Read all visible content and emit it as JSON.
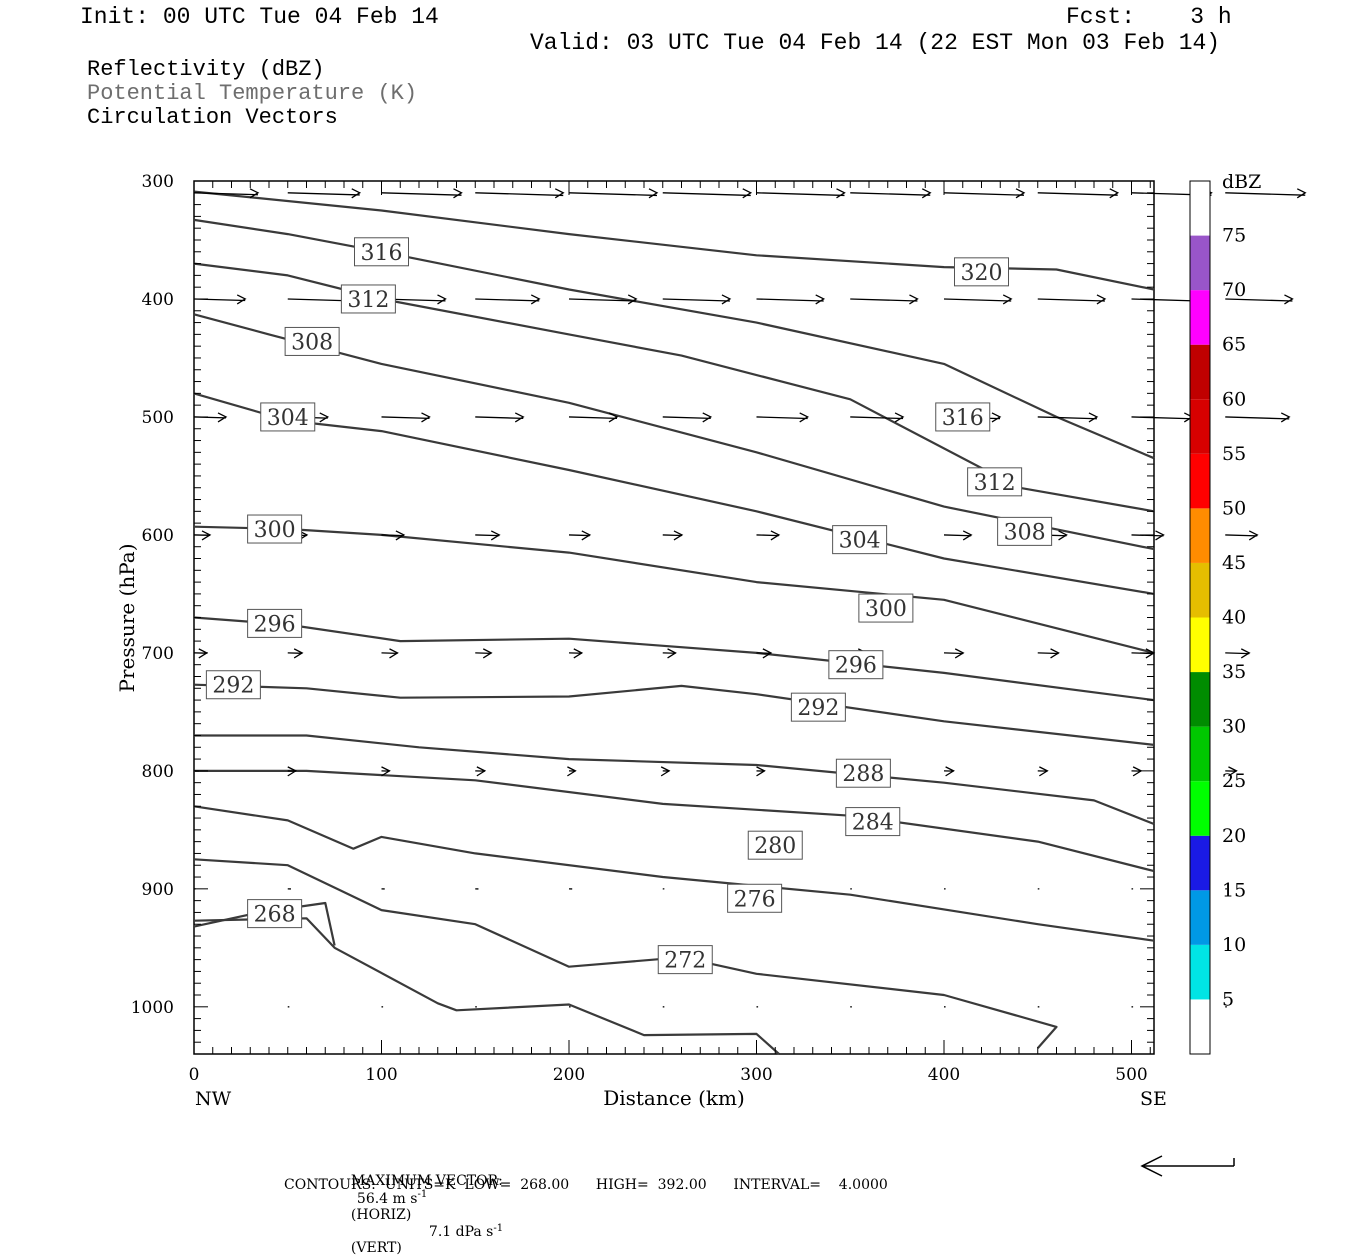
{
  "header": {
    "init": "Init: 00 UTC Tue 04 Feb 14",
    "fcst": "Fcst:    3 h",
    "valid": "Valid: 03 UTC Tue 04 Feb 14 (22 EST Mon 03 Feb 14)"
  },
  "legend_lines": {
    "reflectivity": "Reflectivity (dBZ)",
    "theta": "Potential Temperature (K)",
    "vectors": "Circulation Vectors"
  },
  "footer": {
    "max_vector_label": "MAXIMUM VECTOR:",
    "horiz": "56.4 m s",
    "horiz_tag": "(HORIZ)",
    "vert": "7.1 dPa s",
    "vert_tag": "(VERT)",
    "exponent": "-1",
    "contours": "CONTOURS:  UNITS=K  LOW=  268.00      HIGH=  392.00      INTERVAL=    4.0000"
  },
  "colors": {
    "contour": "#3a3a3a",
    "vector": "#000000"
  },
  "chart_data": {
    "type": "cross-section",
    "xlabel": "Distance (km)",
    "ylabel": "Pressure (hPa)",
    "xlim": [
      0,
      512
    ],
    "ylim": [
      300,
      1040
    ],
    "y_inverted": true,
    "x_ticks": [
      0,
      100,
      200,
      300,
      400,
      500
    ],
    "y_ticks": [
      300,
      400,
      500,
      600,
      700,
      800,
      900,
      1000
    ],
    "x_end_labels": {
      "left": "NW",
      "right": "SE"
    },
    "colorbar": {
      "title": "dBZ",
      "labels": [
        5,
        10,
        15,
        20,
        25,
        30,
        35,
        40,
        45,
        50,
        55,
        60,
        65,
        70,
        75
      ],
      "bins": [
        {
          "from": 0,
          "to": 5,
          "color": "#ffffff"
        },
        {
          "from": 5,
          "to": 10,
          "color": "#00e5e5"
        },
        {
          "from": 10,
          "to": 15,
          "color": "#0099e5"
        },
        {
          "from": 15,
          "to": 20,
          "color": "#1a1ae5"
        },
        {
          "from": 20,
          "to": 25,
          "color": "#00ff00"
        },
        {
          "from": 25,
          "to": 30,
          "color": "#00c800"
        },
        {
          "from": 30,
          "to": 35,
          "color": "#008c00"
        },
        {
          "from": 35,
          "to": 40,
          "color": "#ffff00"
        },
        {
          "from": 40,
          "to": 45,
          "color": "#e5be00"
        },
        {
          "from": 45,
          "to": 50,
          "color": "#ff8c00"
        },
        {
          "from": 50,
          "to": 55,
          "color": "#ff0000"
        },
        {
          "from": 55,
          "to": 60,
          "color": "#d70000"
        },
        {
          "from": 60,
          "to": 65,
          "color": "#c00000"
        },
        {
          "from": 65,
          "to": 70,
          "color": "#ff00ff"
        },
        {
          "from": 70,
          "to": 75,
          "color": "#9955c9"
        },
        {
          "from": 75,
          "to": 80,
          "color": "#ffffff"
        }
      ]
    },
    "theta_contours": [
      {
        "value": 320,
        "points": [
          [
            0,
            309
          ],
          [
            100,
            325
          ],
          [
            200,
            345
          ],
          [
            300,
            363
          ],
          [
            400,
            373
          ],
          [
            460,
            375
          ],
          [
            512,
            392
          ]
        ],
        "label_at": [
          420,
          377
        ]
      },
      {
        "value": 316,
        "points": [
          [
            0,
            333
          ],
          [
            50,
            345
          ],
          [
            100,
            360
          ],
          [
            200,
            392
          ],
          [
            300,
            420
          ],
          [
            400,
            455
          ],
          [
            460,
            500
          ],
          [
            512,
            535
          ]
        ],
        "label_at": [
          [
            100,
            360
          ],
          [
            410,
            500
          ]
        ]
      },
      {
        "value": 312,
        "points": [
          [
            0,
            370
          ],
          [
            50,
            380
          ],
          [
            100,
            400
          ],
          [
            200,
            430
          ],
          [
            260,
            448
          ],
          [
            350,
            485
          ],
          [
            440,
            560
          ],
          [
            512,
            580
          ]
        ],
        "label_at": [
          [
            93,
            400
          ],
          [
            427,
            555
          ]
        ]
      },
      {
        "value": 308,
        "points": [
          [
            0,
            413
          ],
          [
            40,
            430
          ],
          [
            100,
            455
          ],
          [
            200,
            488
          ],
          [
            300,
            530
          ],
          [
            400,
            576
          ],
          [
            512,
            612
          ]
        ],
        "label_at": [
          [
            63,
            436
          ],
          [
            443,
            597
          ]
        ]
      },
      {
        "value": 304,
        "points": [
          [
            0,
            480
          ],
          [
            50,
            503
          ],
          [
            100,
            512
          ],
          [
            200,
            545
          ],
          [
            300,
            580
          ],
          [
            400,
            620
          ],
          [
            512,
            650
          ]
        ],
        "label_at": [
          [
            50,
            500
          ],
          [
            355,
            604
          ]
        ]
      },
      {
        "value": 300,
        "points": [
          [
            0,
            593
          ],
          [
            50,
            595
          ],
          [
            100,
            600
          ],
          [
            200,
            615
          ],
          [
            300,
            640
          ],
          [
            400,
            655
          ],
          [
            512,
            700
          ]
        ],
        "label_at": [
          [
            43,
            595
          ],
          [
            369,
            662
          ]
        ]
      },
      {
        "value": 296,
        "points": [
          [
            0,
            670
          ],
          [
            50,
            676
          ],
          [
            110,
            690
          ],
          [
            200,
            688
          ],
          [
            300,
            700
          ],
          [
            400,
            717
          ],
          [
            512,
            740
          ]
        ],
        "label_at": [
          [
            43,
            675
          ],
          [
            353,
            710
          ]
        ]
      },
      {
        "value": 292,
        "points": [
          [
            0,
            727
          ],
          [
            60,
            730
          ],
          [
            110,
            738
          ],
          [
            200,
            737
          ],
          [
            260,
            728
          ],
          [
            300,
            735
          ],
          [
            400,
            758
          ],
          [
            512,
            778
          ]
        ],
        "label_at": [
          [
            21,
            727
          ],
          [
            333,
            746
          ]
        ]
      },
      {
        "value": 288,
        "points": [
          [
            0,
            770
          ],
          [
            60,
            770
          ],
          [
            120,
            780
          ],
          [
            200,
            790
          ],
          [
            300,
            795
          ],
          [
            400,
            810
          ],
          [
            480,
            825
          ],
          [
            512,
            845
          ]
        ],
        "label_at": [
          [
            357,
            802
          ]
        ]
      },
      {
        "value": 284,
        "points": [
          [
            0,
            800
          ],
          [
            60,
            800
          ],
          [
            150,
            808
          ],
          [
            250,
            828
          ],
          [
            350,
            838
          ],
          [
            450,
            860
          ],
          [
            512,
            885
          ]
        ],
        "label_at": [
          [
            362,
            843
          ]
        ]
      },
      {
        "value": 280,
        "points": [
          [
            0,
            830
          ],
          [
            50,
            842
          ],
          [
            85,
            866
          ],
          [
            100,
            856
          ],
          [
            150,
            870
          ],
          [
            250,
            890
          ],
          [
            350,
            905
          ],
          [
            450,
            930
          ],
          [
            512,
            944
          ]
        ],
        "label_at": [
          [
            310,
            863
          ]
        ]
      },
      {
        "value": 276,
        "points": [
          [
            0,
            875
          ],
          [
            50,
            880
          ],
          [
            100,
            918
          ],
          [
            150,
            930
          ],
          [
            200,
            966
          ],
          [
            260,
            958
          ],
          [
            300,
            972
          ],
          [
            400,
            990
          ],
          [
            460,
            1017
          ],
          [
            450,
            1035
          ]
        ],
        "label_at": [
          [
            299,
            908
          ]
        ]
      },
      {
        "value": 272,
        "points": [
          [
            0,
            927
          ],
          [
            60,
            925
          ],
          [
            75,
            950
          ],
          [
            130,
            997
          ],
          [
            140,
            1003
          ],
          [
            200,
            998
          ],
          [
            240,
            1024
          ],
          [
            300,
            1023
          ],
          [
            312,
            1040
          ]
        ],
        "label_at": [
          [
            262,
            960
          ]
        ]
      },
      {
        "value": 268,
        "points": [
          [
            0,
            932
          ],
          [
            35,
            920
          ],
          [
            70,
            912
          ],
          [
            75,
            948
          ]
        ],
        "label_at": [
          [
            43,
            921
          ]
        ]
      }
    ],
    "circulation_vectors": [
      {
        "row": 310,
        "u": [
          40,
          45,
          50,
          55,
          55,
          55,
          55,
          50,
          50,
          50,
          50,
          50
        ]
      },
      {
        "row": 400,
        "u": [
          32,
          40,
          40,
          40,
          42,
          42,
          42,
          42,
          42,
          42,
          42,
          42
        ]
      },
      {
        "row": 500,
        "u": [
          20,
          25,
          30,
          30,
          30,
          30,
          32,
          33,
          35,
          37,
          38,
          40
        ]
      },
      {
        "row": 600,
        "u": [
          10,
          12,
          14,
          15,
          13,
          12,
          14,
          15,
          17,
          18,
          20,
          20
        ]
      },
      {
        "row": 700,
        "u": [
          8,
          9,
          10,
          10,
          8,
          8,
          9,
          10,
          12,
          13,
          14,
          15
        ]
      },
      {
        "row": 800,
        "u": [
          3,
          5,
          5,
          6,
          4,
          4,
          5,
          5,
          6,
          6,
          6,
          7
        ]
      },
      {
        "row": 900,
        "u": [
          1,
          2,
          2,
          2,
          2,
          1,
          1,
          1,
          1,
          1,
          1,
          1
        ]
      },
      {
        "row": 1000,
        "u": [
          0,
          1,
          1,
          1,
          1,
          1,
          1,
          1,
          1,
          1,
          1,
          1
        ]
      }
    ]
  }
}
